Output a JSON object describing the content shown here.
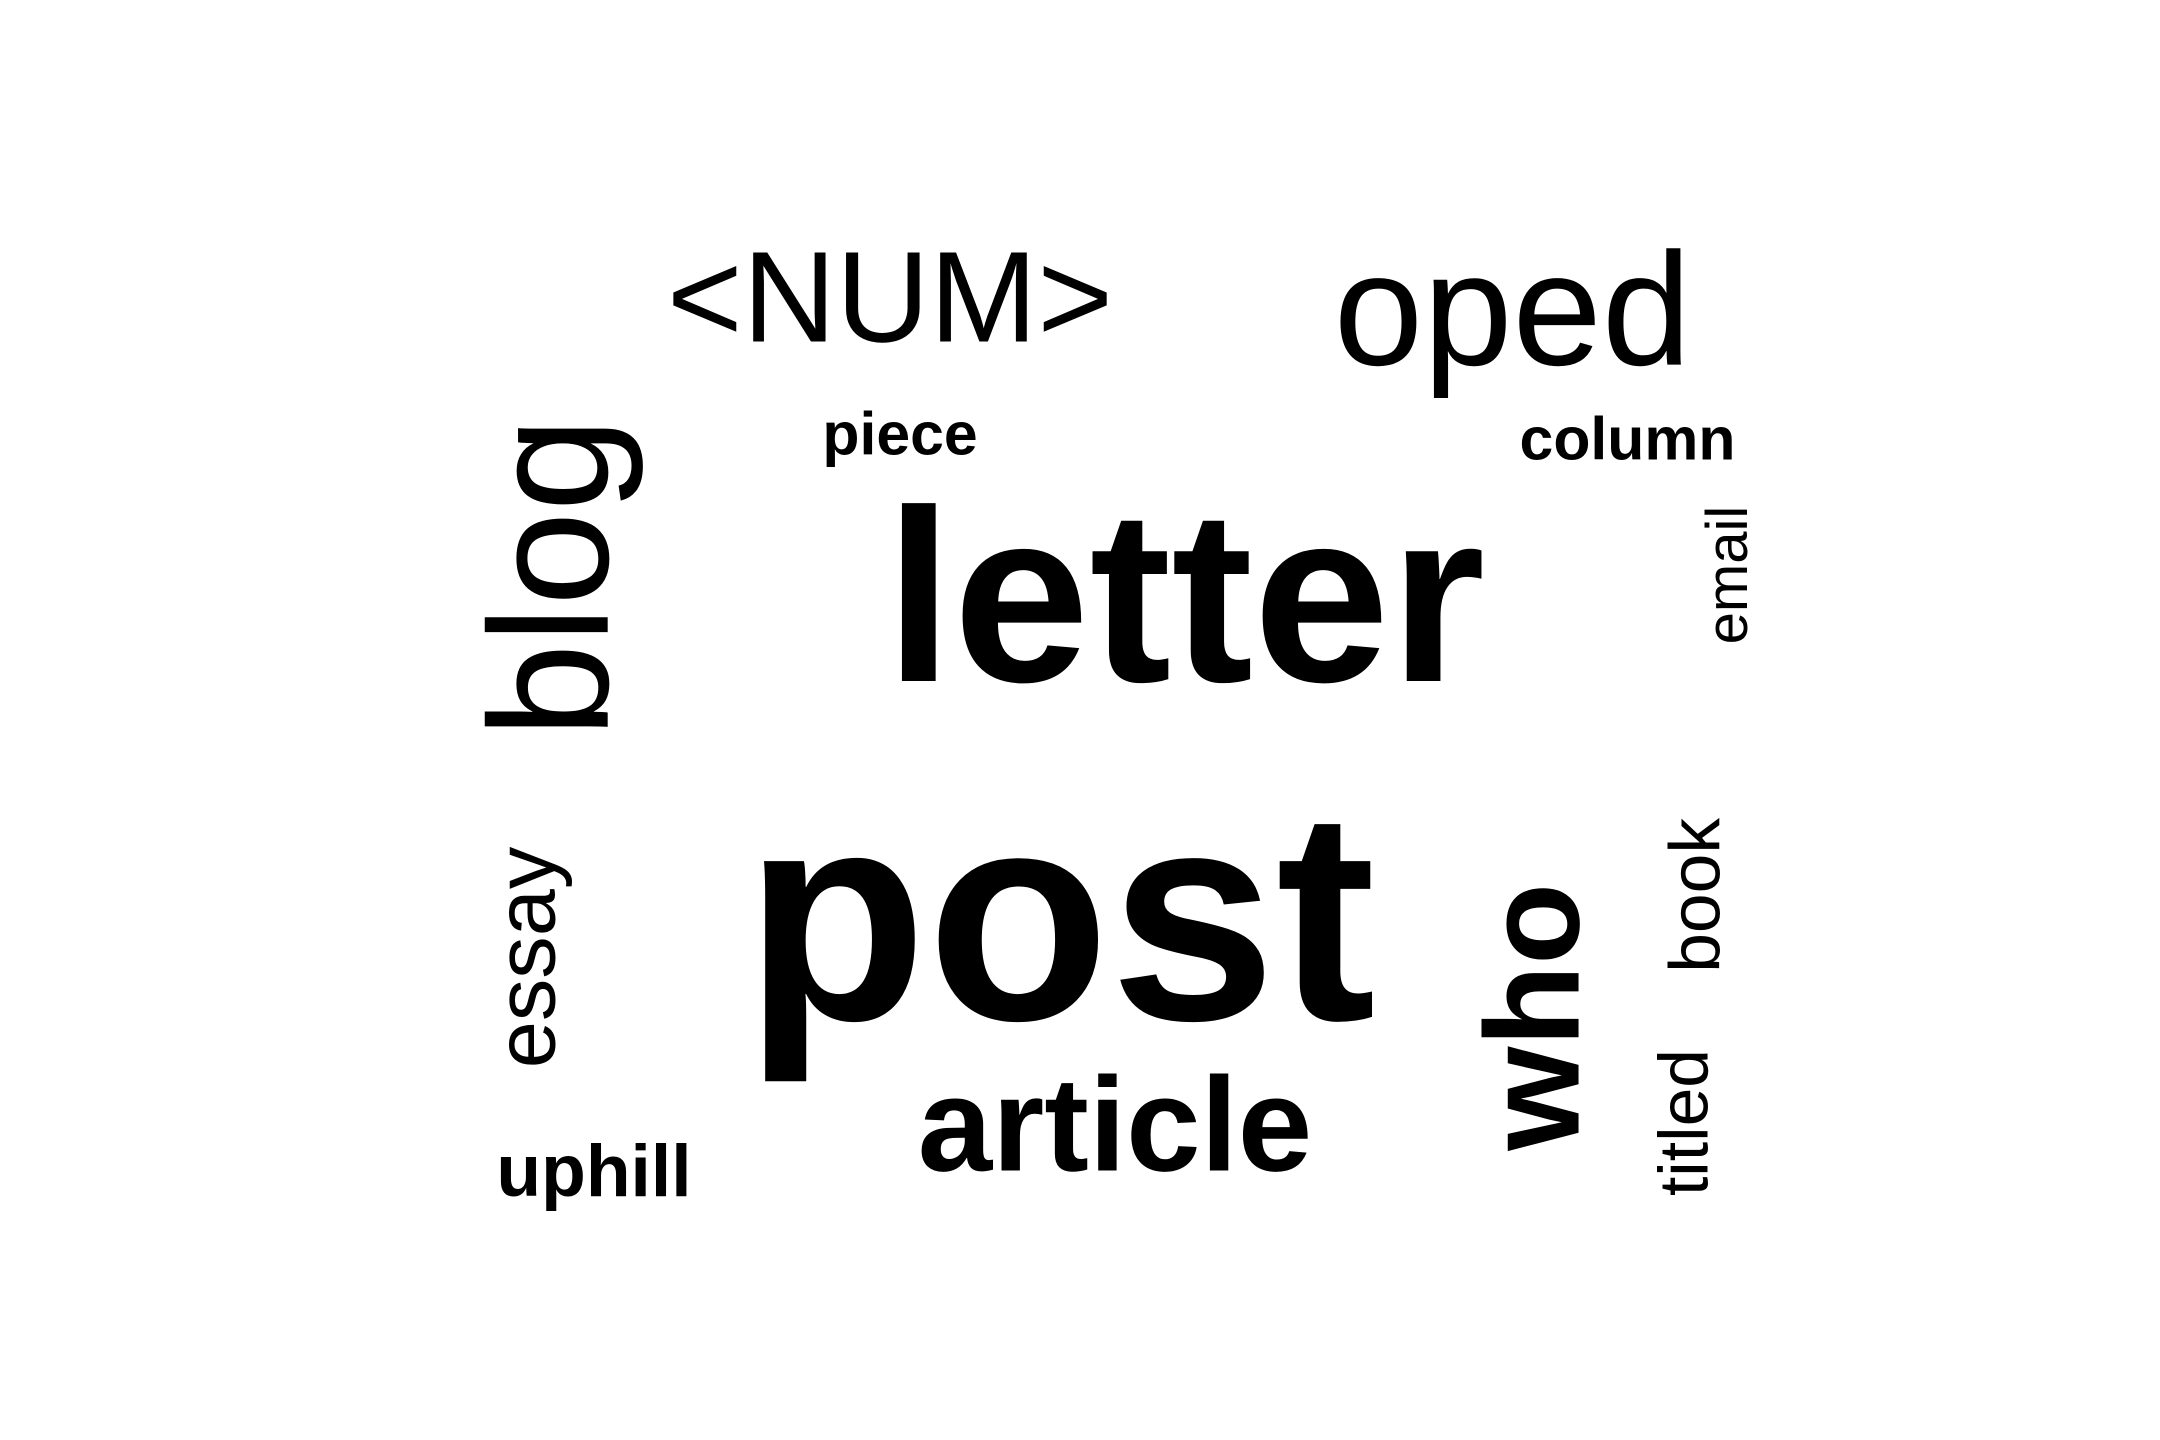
{
  "word_cloud": {
    "text_color": "#000000",
    "background_color": "#ffffff",
    "words": [
      {
        "id": "letter",
        "text": "letter",
        "orientation": "horizontal"
      },
      {
        "id": "post",
        "text": "post",
        "orientation": "horizontal"
      },
      {
        "id": "num",
        "text": "<NUM>",
        "orientation": "horizontal"
      },
      {
        "id": "oped",
        "text": "oped",
        "orientation": "horizontal"
      },
      {
        "id": "who",
        "text": "who",
        "orientation": "vertical"
      },
      {
        "id": "article",
        "text": "article",
        "orientation": "horizontal"
      },
      {
        "id": "blog",
        "text": "blog",
        "orientation": "vertical"
      },
      {
        "id": "essay",
        "text": "essay",
        "orientation": "vertical"
      },
      {
        "id": "book",
        "text": "book",
        "orientation": "vertical"
      },
      {
        "id": "column",
        "text": "column",
        "orientation": "horizontal"
      },
      {
        "id": "uphill",
        "text": "uphill",
        "orientation": "horizontal"
      },
      {
        "id": "titled",
        "text": "titled",
        "orientation": "vertical"
      },
      {
        "id": "email",
        "text": "email",
        "orientation": "vertical"
      },
      {
        "id": "piece",
        "text": "piece",
        "orientation": "horizontal"
      }
    ]
  }
}
